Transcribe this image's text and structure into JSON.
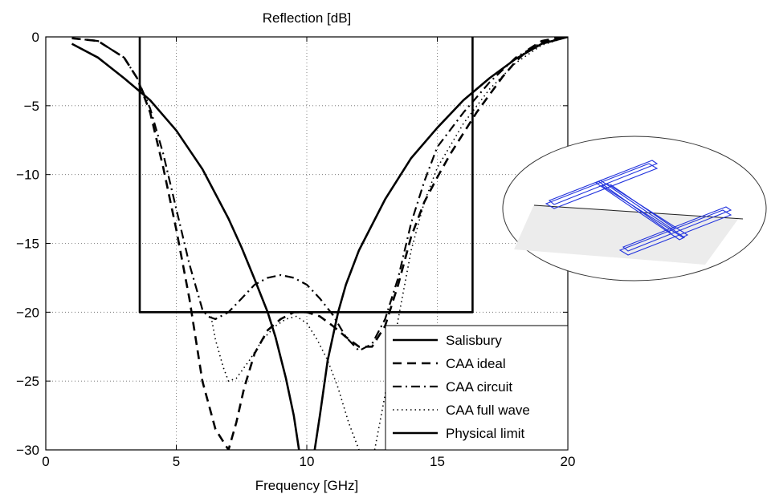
{
  "chart_data": {
    "type": "line",
    "title": "Reflection [dB]",
    "xlabel": "Frequency [GHz]",
    "ylabel": "",
    "xlim": [
      0,
      20
    ],
    "ylim": [
      -30,
      0
    ],
    "xticks": [
      0,
      5,
      10,
      15,
      20
    ],
    "yticks": [
      0,
      -5,
      -10,
      -15,
      -20,
      -25,
      -30
    ],
    "grid": true,
    "legend_position": "bottom-right",
    "series": [
      {
        "name": "Salisbury",
        "style": "solid",
        "x": [
          1,
          2,
          3,
          3.5,
          4,
          5,
          6,
          7,
          7.5,
          8,
          8.5,
          8.8,
          9.2,
          9.5,
          9.7
        ],
        "y": [
          -0.5,
          -1.5,
          -3.0,
          -3.8,
          -4.6,
          -6.8,
          -9.6,
          -13.2,
          -15.3,
          -17.6,
          -20.0,
          -21.8,
          -24.8,
          -27.5,
          -30.0
        ]
      },
      {
        "name": "Salisbury",
        "style": "solid",
        "x": [
          10.3,
          10.5,
          10.8,
          11.2,
          11.5,
          12,
          13,
          14,
          15,
          16,
          17,
          18,
          19,
          20
        ],
        "y": [
          -30.0,
          -27.5,
          -23.5,
          -20.0,
          -18.0,
          -15.5,
          -11.8,
          -8.8,
          -6.6,
          -4.6,
          -3.0,
          -1.6,
          -0.5,
          0
        ]
      },
      {
        "name": "CAA ideal",
        "style": "dashed",
        "x": [
          1,
          2,
          3,
          3.5,
          4,
          4.5,
          5,
          5.5,
          6,
          6.5,
          7,
          7.3,
          7.6,
          8,
          8.5,
          9,
          9.5,
          10,
          10.5,
          11,
          11.5,
          12,
          12.5,
          13,
          13.5,
          14,
          14.5,
          15,
          15.5,
          16,
          16.5,
          17,
          17.5,
          18,
          18.5,
          19,
          19.5,
          20
        ],
        "y": [
          -0.1,
          -0.3,
          -1.5,
          -3.0,
          -5.5,
          -9.5,
          -14.0,
          -19.0,
          -25.0,
          -28.5,
          -30.0,
          -28.0,
          -25.5,
          -23.0,
          -21.3,
          -20.5,
          -20.0,
          -20.0,
          -20.3,
          -21.0,
          -21.8,
          -22.5,
          -22.5,
          -21.0,
          -18.0,
          -14.5,
          -12.0,
          -10.2,
          -8.5,
          -7.0,
          -5.5,
          -4.2,
          -2.9,
          -1.8,
          -0.9,
          -0.3,
          -0.1,
          0
        ]
      },
      {
        "name": "CAA circuit",
        "style": "dashdot",
        "x": [
          1,
          2,
          3,
          3.5,
          4,
          4.5,
          5,
          5.5,
          6,
          6.2,
          6.5,
          7,
          7.5,
          8,
          8.5,
          9,
          9.5,
          10,
          10.5,
          11,
          11.5,
          12,
          12.5,
          13,
          13.5,
          14,
          14.5,
          15,
          16,
          17,
          18,
          19,
          20
        ],
        "y": [
          -0.1,
          -0.3,
          -1.5,
          -3.0,
          -5.2,
          -8.5,
          -12.5,
          -16.5,
          -19.8,
          -20.3,
          -20.5,
          -20.0,
          -19.0,
          -18.0,
          -17.5,
          -17.3,
          -17.5,
          -18.0,
          -19.0,
          -20.2,
          -21.8,
          -22.8,
          -22.3,
          -20.5,
          -17.5,
          -13.5,
          -10.5,
          -8.0,
          -5.5,
          -3.3,
          -1.5,
          -0.4,
          0
        ]
      },
      {
        "name": "CAA full wave",
        "style": "dotted",
        "x": [
          6.3,
          6.5,
          6.8,
          7.0,
          7.3,
          7.8,
          8.3,
          8.8,
          9.2,
          9.6,
          10,
          10.4,
          10.8,
          11.2,
          11.6,
          12,
          12.2
        ],
        "y": [
          -20.0,
          -22.0,
          -24.0,
          -25.0,
          -24.8,
          -23.5,
          -22.0,
          -21.0,
          -20.5,
          -20.3,
          -20.8,
          -22.0,
          -23.5,
          -25.5,
          -28.0,
          -30.0,
          -30.5
        ]
      },
      {
        "name": "CAA full wave",
        "style": "dotted",
        "x": [
          12.6,
          13,
          13.5,
          14,
          14.5,
          15,
          16,
          17,
          18,
          19,
          20
        ],
        "y": [
          -30.0,
          -26.0,
          -20.5,
          -15.5,
          -12.0,
          -9.5,
          -6.3,
          -3.8,
          -1.9,
          -0.6,
          0
        ]
      },
      {
        "name": "Physical limit",
        "style": "solid",
        "x": [
          3.6,
          3.6,
          16.35,
          16.35
        ],
        "y": [
          0,
          -20,
          -20,
          0
        ]
      }
    ],
    "legend": [
      {
        "name": "Salisbury",
        "style": "solid"
      },
      {
        "name": "CAA ideal",
        "style": "dashed"
      },
      {
        "name": "CAA circuit",
        "style": "dashdot"
      },
      {
        "name": "CAA full wave",
        "style": "dotted"
      },
      {
        "name": "Physical limit",
        "style": "solid"
      }
    ]
  }
}
